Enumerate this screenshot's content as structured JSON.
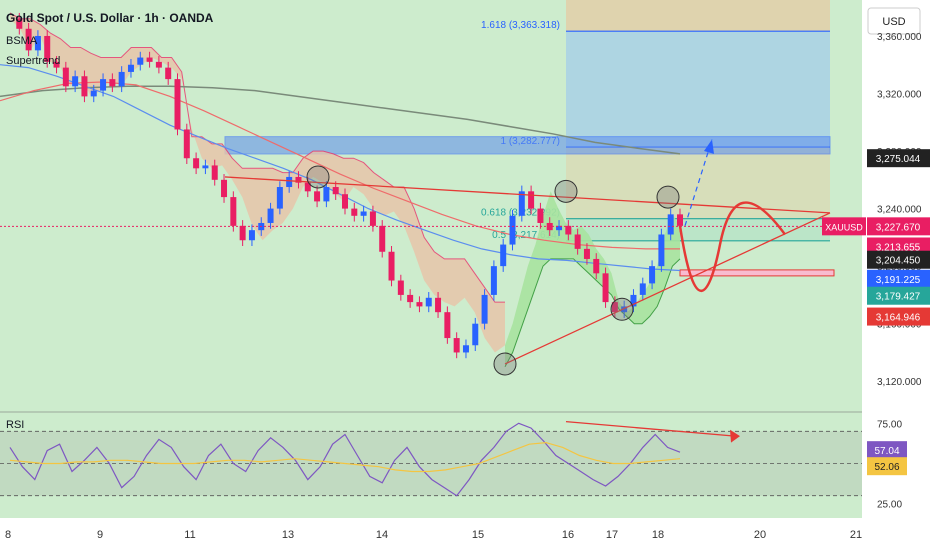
{
  "header": {
    "title": "Gold Spot / U.S. Dollar · 1h · OANDA",
    "indicators": [
      "BSMA",
      "Supertrend"
    ],
    "currency": "USD"
  },
  "colors": {
    "background": "#cdeccd",
    "bull": "#2962ff",
    "bear": "#e91e63",
    "supertrend_up_fill": "#a9e3a0",
    "supertrend_down_fill": "#e9c3a8",
    "ma_blue": "#5b8def",
    "ma_red": "#ef6b6b",
    "ma_gray": "#7a8a7a",
    "fib_line": "#2962ff",
    "target_box": "#a8d5e8",
    "stop_box": "#e2cfa8",
    "rsi_line": "#7e57c2",
    "rsi_ma": "#f4c542",
    "annotation_red": "#e53935"
  },
  "chart_data": [
    {
      "type": "candlestick",
      "title": "Gold Spot / U.S. Dollar · 1h · OANDA",
      "x_tick_labels": [
        "8",
        "9",
        "11",
        "13",
        "14",
        "15",
        "16",
        "17",
        "18",
        "20",
        "21"
      ],
      "y_tick_labels": [
        "3,120.000",
        "3,160.000",
        "3,200.000",
        "3,240.000",
        "3,280.000",
        "3,320.000",
        "3,360.000"
      ],
      "ylim": [
        3100,
        3385
      ],
      "grid": false,
      "price_path": [
        3372,
        3365,
        3350,
        3360,
        3342,
        3338,
        3325,
        3332,
        3318,
        3322,
        3330,
        3325,
        3335,
        3340,
        3345,
        3342,
        3338,
        3330,
        3295,
        3275,
        3268,
        3270,
        3260,
        3248,
        3228,
        3218,
        3225,
        3230,
        3240,
        3255,
        3262,
        3258,
        3252,
        3245,
        3255,
        3250,
        3240,
        3235,
        3238,
        3228,
        3210,
        3190,
        3180,
        3175,
        3172,
        3178,
        3168,
        3150,
        3140,
        3145,
        3160,
        3180,
        3200,
        3215,
        3235,
        3252,
        3240,
        3230,
        3225,
        3228,
        3222,
        3212,
        3205,
        3195,
        3175,
        3168,
        3172,
        3180,
        3188,
        3200,
        3222,
        3236,
        3228
      ],
      "supertrend_down": [
        3376,
        3372,
        3372,
        3368,
        3362,
        3358,
        3352,
        3352,
        3348,
        3345,
        3345,
        3345,
        3352,
        3352,
        3352,
        3345,
        3345,
        3335,
        3290,
        3290,
        3285,
        3285,
        3275,
        3268,
        3268,
        3268,
        3268,
        3265,
        3265,
        3275,
        3280,
        3280,
        3278,
        3275,
        3275,
        3272,
        3265,
        3260,
        3255,
        3255,
        3240,
        3220,
        3210,
        3205,
        3205,
        3205,
        3195,
        3185,
        3175,
        3175
      ],
      "supertrend_up": [
        3130,
        3140,
        3155,
        3170,
        3185,
        3200,
        3205,
        3205,
        3205,
        3205,
        3200,
        3195,
        3190,
        3185,
        3180,
        3170,
        3165,
        3160,
        3160,
        3165,
        3172,
        3185,
        3200,
        3205
      ],
      "ma_blue": [
        3340,
        3338,
        3332,
        3325,
        3318,
        3308,
        3298,
        3290,
        3282,
        3275,
        3268,
        3260,
        3250,
        3240,
        3232,
        3225,
        3218,
        3212,
        3208,
        3205,
        3204,
        3202,
        3200,
        3198,
        3197
      ],
      "ma_red": [
        3315,
        3322,
        3327,
        3328,
        3326,
        3318,
        3308,
        3297,
        3286,
        3275,
        3264,
        3254,
        3245,
        3236,
        3228,
        3222,
        3218,
        3215,
        3213,
        3212,
        3212
      ],
      "ma_gray": [
        3318,
        3322,
        3324,
        3325,
        3325,
        3324,
        3322,
        3318,
        3314,
        3310,
        3306,
        3302,
        3297,
        3292,
        3286,
        3282,
        3278
      ],
      "fib_levels": [
        {
          "label": "1.618 (3,363.318)",
          "value": 3363.318
        },
        {
          "label": "1 (3,282.777)",
          "value": 3282.777
        },
        {
          "label": "0.618 (3,232.992)",
          "value": 3232.992
        },
        {
          "label": "0.5 (3,217.614)",
          "value": 3217.614
        }
      ],
      "target_zone": [
        3282.777,
        3385
      ],
      "stop_zone": [
        3282.777,
        3232.992
      ],
      "resistance_zone": [
        3278,
        3290
      ],
      "support_zone": [
        3192,
        3196
      ],
      "price_tags": [
        {
          "label": "3,275.044",
          "value": 3275.044,
          "color": "#222222"
        },
        {
          "label": "XAUUSD",
          "value": 3227.67,
          "color": "#e91e63",
          "tag": "3,227.670"
        },
        {
          "label": "3,213.655",
          "value": 3213.655,
          "color": "#e91e63"
        },
        {
          "label": "3,204.450",
          "value": 3204.45,
          "color": "#222222"
        },
        {
          "label": "3,191.225",
          "value": 3191.225,
          "color": "#2962ff"
        },
        {
          "label": "3,179.427",
          "value": 3179.427,
          "color": "#26a69a"
        },
        {
          "label": "3,164.946",
          "value": 3164.946,
          "color": "#e53935"
        }
      ]
    },
    {
      "type": "line",
      "title": "RSI",
      "y_tick_labels": [
        "25.00",
        "75.00"
      ],
      "ylim": [
        18,
        82
      ],
      "bands": [
        30,
        50,
        70
      ],
      "rsi": [
        60,
        48,
        40,
        58,
        62,
        45,
        52,
        60,
        50,
        35,
        42,
        55,
        65,
        60,
        48,
        40,
        55,
        62,
        50,
        45,
        58,
        66,
        60,
        52,
        40,
        48,
        62,
        68,
        55,
        42,
        38,
        52,
        60,
        48,
        40,
        35,
        30,
        40,
        52,
        60,
        70,
        75,
        72,
        64,
        55,
        50,
        45,
        40,
        36,
        42,
        50,
        60,
        68,
        60,
        57
      ],
      "rsi_ma": [
        52,
        51,
        50,
        50,
        51,
        51,
        52,
        52,
        51,
        50,
        50,
        50,
        51,
        52,
        52,
        51,
        52,
        53,
        52,
        51,
        50,
        49,
        48,
        46,
        45,
        45,
        46,
        48,
        50,
        54,
        58,
        62,
        63,
        60,
        55,
        52,
        50,
        50,
        51,
        52,
        53
      ],
      "tags": [
        {
          "label": "57.04",
          "color": "#7e57c2"
        },
        {
          "label": "52.06",
          "color": "#f4c542"
        }
      ]
    }
  ]
}
